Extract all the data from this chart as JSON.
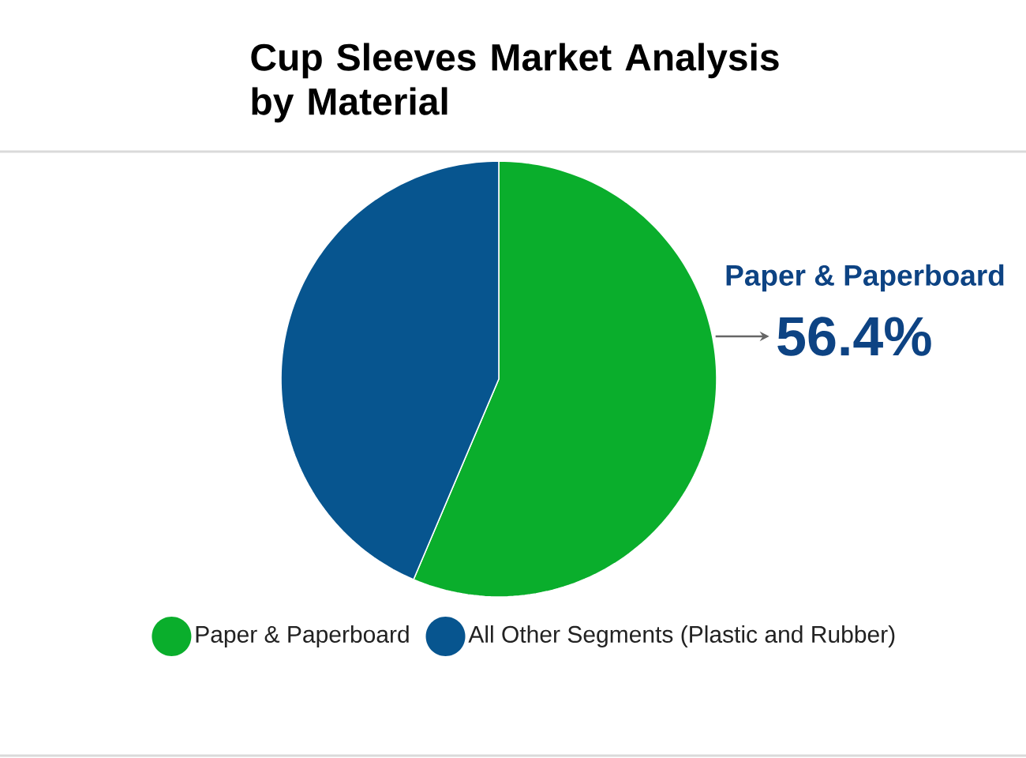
{
  "chart_data": {
    "type": "pie",
    "title": "Cup Sleeves Market Analysis by Material",
    "categories": [
      "Paper & Paperboard",
      "All Other Segments (Plastic and Rubber)"
    ],
    "values": [
      56.4,
      43.6
    ],
    "colors": [
      "#0aae2c",
      "#07558f"
    ],
    "value_labels": [
      "56.4%",
      null
    ],
    "annotations": [
      "Paper & Paperboard"
    ],
    "legend": "bottom"
  }
}
